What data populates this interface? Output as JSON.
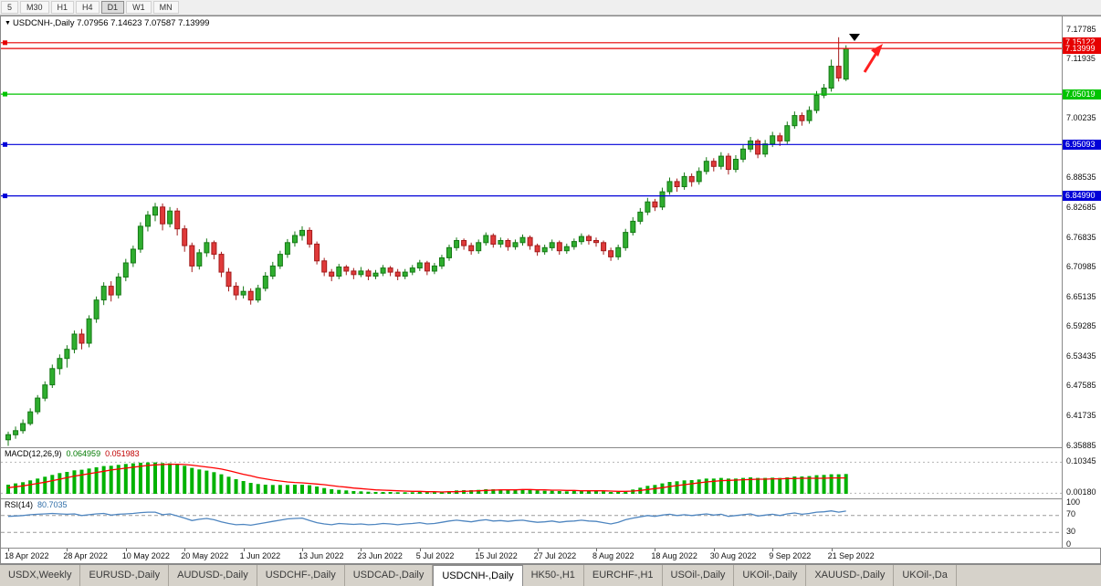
{
  "toolbar": {
    "periods": [
      {
        "label": "5",
        "active": false
      },
      {
        "label": "M30",
        "active": false
      },
      {
        "label": "H1",
        "active": false
      },
      {
        "label": "H4",
        "active": false
      },
      {
        "label": "D1",
        "active": true
      },
      {
        "label": "W1",
        "active": false
      },
      {
        "label": "MN",
        "active": false
      }
    ]
  },
  "chart": {
    "title": {
      "marker": "▼",
      "symbol": "USDCNH-,Daily",
      "open": "7.07956",
      "high": "7.14623",
      "low": "7.07587",
      "close": "7.13999",
      "display": "USDCNH-,Daily  7.07956 7.14623 7.07587 7.13999"
    }
  },
  "chart_data": {
    "type": "candlestick",
    "symbol": "USDCNH",
    "timeframe": "Daily",
    "price_range": {
      "top": 7.17785,
      "bottom": 6.35885
    },
    "price_ticks": [
      "7.17785",
      "7.11935",
      "7.00235",
      "6.88535",
      "6.82685",
      "6.76835",
      "6.70985",
      "6.65135",
      "6.59285",
      "6.53435",
      "6.47585",
      "6.41735",
      "6.35885"
    ],
    "hlines": [
      {
        "price": 7.15122,
        "label": "7.15122",
        "color": "#e60000",
        "marker": true,
        "name": "resistance-line"
      },
      {
        "price": 7.13999,
        "label": "7.13999",
        "color": "#e60000",
        "marker": false,
        "name": "bid-price-line"
      },
      {
        "price": 7.05019,
        "label": "7.05019",
        "color": "#00c400",
        "marker": true,
        "name": "support-line-1"
      },
      {
        "price": 6.95093,
        "label": "6.95093",
        "color": "#0000d8",
        "marker": true,
        "name": "support-line-2"
      },
      {
        "price": 6.8499,
        "label": "6.84990",
        "color": "#0000d8",
        "marker": true,
        "name": "support-line-3"
      }
    ],
    "x_axis": [
      {
        "label": "18 Apr 2022",
        "index": 0
      },
      {
        "label": "28 Apr 2022",
        "index": 8
      },
      {
        "label": "10 May 2022",
        "index": 16
      },
      {
        "label": "20 May 2022",
        "index": 24
      },
      {
        "label": "1 Jun 2022",
        "index": 32
      },
      {
        "label": "13 Jun 2022",
        "index": 40
      },
      {
        "label": "23 Jun 2022",
        "index": 48
      },
      {
        "label": "5 Jul 2022",
        "index": 56
      },
      {
        "label": "15 Jul 2022",
        "index": 64
      },
      {
        "label": "27 Jul 2022",
        "index": 72
      },
      {
        "label": "8 Aug 2022",
        "index": 80
      },
      {
        "label": "18 Aug 2022",
        "index": 88
      },
      {
        "label": "30 Aug 2022",
        "index": 96
      },
      {
        "label": "9 Sep 2022",
        "index": 104
      },
      {
        "label": "21 Sep 2022",
        "index": 112
      }
    ],
    "candles_ohlc": [
      [
        6.37,
        6.386,
        6.358,
        6.38
      ],
      [
        6.38,
        6.396,
        6.372,
        6.388
      ],
      [
        6.388,
        6.41,
        6.382,
        6.402
      ],
      [
        6.402,
        6.432,
        6.398,
        6.425
      ],
      [
        6.425,
        6.458,
        6.42,
        6.452
      ],
      [
        6.452,
        6.485,
        6.446,
        6.478
      ],
      [
        6.478,
        6.518,
        6.472,
        6.51
      ],
      [
        6.51,
        6.538,
        6.498,
        6.53
      ],
      [
        6.53,
        6.556,
        6.512,
        6.548
      ],
      [
        6.548,
        6.585,
        6.54,
        6.578
      ],
      [
        6.578,
        6.588,
        6.548,
        6.56
      ],
      [
        6.56,
        6.615,
        6.552,
        6.608
      ],
      [
        6.608,
        6.652,
        6.6,
        6.645
      ],
      [
        6.645,
        6.68,
        6.635,
        6.672
      ],
      [
        6.672,
        6.682,
        6.642,
        6.655
      ],
      [
        6.655,
        6.698,
        6.648,
        6.69
      ],
      [
        6.69,
        6.726,
        6.682,
        6.718
      ],
      [
        6.718,
        6.752,
        6.71,
        6.745
      ],
      [
        6.745,
        6.798,
        6.738,
        6.79
      ],
      [
        6.79,
        6.82,
        6.78,
        6.812
      ],
      [
        6.812,
        6.836,
        6.8,
        6.828
      ],
      [
        6.828,
        6.835,
        6.782,
        6.795
      ],
      [
        6.795,
        6.828,
        6.788,
        6.82
      ],
      [
        6.82,
        6.826,
        6.772,
        6.785
      ],
      [
        6.785,
        6.792,
        6.74,
        6.752
      ],
      [
        6.752,
        6.758,
        6.7,
        6.712
      ],
      [
        6.712,
        6.745,
        6.705,
        6.738
      ],
      [
        6.738,
        6.766,
        6.73,
        6.758
      ],
      [
        6.758,
        6.762,
        6.725,
        6.735
      ],
      [
        6.735,
        6.74,
        6.69,
        6.7
      ],
      [
        6.7,
        6.708,
        6.662,
        6.672
      ],
      [
        6.672,
        6.68,
        6.645,
        6.655
      ],
      [
        6.655,
        6.672,
        6.648,
        6.662
      ],
      [
        6.662,
        6.668,
        6.636,
        6.645
      ],
      [
        6.645,
        6.675,
        6.64,
        6.668
      ],
      [
        6.668,
        6.7,
        6.662,
        6.692
      ],
      [
        6.692,
        6.72,
        6.686,
        6.712
      ],
      [
        6.712,
        6.742,
        6.706,
        6.735
      ],
      [
        6.735,
        6.765,
        6.728,
        6.758
      ],
      [
        6.758,
        6.78,
        6.75,
        6.772
      ],
      [
        6.772,
        6.79,
        6.762,
        6.782
      ],
      [
        6.782,
        6.788,
        6.748,
        6.755
      ],
      [
        6.755,
        6.76,
        6.715,
        6.722
      ],
      [
        6.722,
        6.728,
        6.692,
        6.7
      ],
      [
        6.7,
        6.706,
        6.682,
        6.692
      ],
      [
        6.692,
        6.716,
        6.686,
        6.71
      ],
      [
        6.71,
        6.714,
        6.694,
        6.702
      ],
      [
        6.702,
        6.708,
        6.686,
        6.695
      ],
      [
        6.695,
        6.71,
        6.69,
        6.702
      ],
      [
        6.702,
        6.706,
        6.684,
        6.692
      ],
      [
        6.692,
        6.704,
        6.686,
        6.698
      ],
      [
        6.698,
        6.714,
        6.692,
        6.708
      ],
      [
        6.708,
        6.712,
        6.692,
        6.7
      ],
      [
        6.7,
        6.706,
        6.684,
        6.692
      ],
      [
        6.692,
        6.706,
        6.686,
        6.7
      ],
      [
        6.7,
        6.714,
        6.694,
        6.708
      ],
      [
        6.708,
        6.724,
        6.702,
        6.718
      ],
      [
        6.718,
        6.722,
        6.694,
        6.702
      ],
      [
        6.702,
        6.718,
        6.696,
        6.712
      ],
      [
        6.712,
        6.734,
        6.706,
        6.728
      ],
      [
        6.728,
        6.754,
        6.722,
        6.748
      ],
      [
        6.748,
        6.768,
        6.742,
        6.762
      ],
      [
        6.762,
        6.766,
        6.744,
        6.752
      ],
      [
        6.752,
        6.758,
        6.734,
        6.742
      ],
      [
        6.742,
        6.764,
        6.736,
        6.758
      ],
      [
        6.758,
        6.778,
        6.752,
        6.772
      ],
      [
        6.772,
        6.776,
        6.748,
        6.755
      ],
      [
        6.755,
        6.768,
        6.748,
        6.762
      ],
      [
        6.762,
        6.766,
        6.742,
        6.75
      ],
      [
        6.75,
        6.764,
        6.744,
        6.758
      ],
      [
        6.758,
        6.774,
        6.752,
        6.768
      ],
      [
        6.768,
        6.772,
        6.744,
        6.752
      ],
      [
        6.752,
        6.756,
        6.732,
        6.74
      ],
      [
        6.74,
        6.754,
        6.734,
        6.748
      ],
      [
        6.748,
        6.764,
        6.742,
        6.758
      ],
      [
        6.758,
        6.762,
        6.734,
        6.742
      ],
      [
        6.742,
        6.756,
        6.736,
        6.75
      ],
      [
        6.75,
        6.766,
        6.744,
        6.76
      ],
      [
        6.76,
        6.776,
        6.754,
        6.77
      ],
      [
        6.77,
        6.774,
        6.754,
        6.762
      ],
      [
        6.762,
        6.768,
        6.75,
        6.758
      ],
      [
        6.758,
        6.762,
        6.734,
        6.742
      ],
      [
        6.742,
        6.748,
        6.722,
        6.73
      ],
      [
        6.73,
        6.754,
        6.724,
        6.748
      ],
      [
        6.748,
        6.785,
        6.742,
        6.778
      ],
      [
        6.778,
        6.808,
        6.772,
        6.8
      ],
      [
        6.8,
        6.826,
        6.794,
        6.818
      ],
      [
        6.818,
        6.846,
        6.812,
        6.838
      ],
      [
        6.838,
        6.844,
        6.82,
        6.828
      ],
      [
        6.828,
        6.866,
        6.822,
        6.858
      ],
      [
        6.858,
        6.886,
        6.852,
        6.878
      ],
      [
        6.878,
        6.884,
        6.858,
        6.868
      ],
      [
        6.868,
        6.896,
        6.862,
        6.888
      ],
      [
        6.888,
        6.894,
        6.868,
        6.878
      ],
      [
        6.878,
        6.906,
        6.872,
        6.898
      ],
      [
        6.898,
        6.926,
        6.892,
        6.918
      ],
      [
        6.918,
        6.924,
        6.898,
        6.908
      ],
      [
        6.908,
        6.936,
        6.902,
        6.928
      ],
      [
        6.928,
        6.934,
        6.892,
        6.902
      ],
      [
        6.902,
        6.93,
        6.896,
        6.922
      ],
      [
        6.922,
        6.95,
        6.916,
        6.942
      ],
      [
        6.942,
        6.966,
        6.936,
        6.958
      ],
      [
        6.958,
        6.962,
        6.924,
        6.932
      ],
      [
        6.932,
        6.96,
        6.926,
        6.952
      ],
      [
        6.952,
        6.976,
        6.946,
        6.968
      ],
      [
        6.968,
        6.974,
        6.948,
        6.958
      ],
      [
        6.958,
        6.996,
        6.952,
        6.988
      ],
      [
        6.988,
        7.016,
        6.982,
        7.008
      ],
      [
        7.008,
        7.014,
        6.988,
        6.998
      ],
      [
        6.998,
        7.026,
        6.992,
        7.018
      ],
      [
        7.018,
        7.056,
        7.012,
        7.048
      ],
      [
        7.048,
        7.07,
        7.042,
        7.062
      ],
      [
        7.062,
        7.118,
        7.055,
        7.105
      ],
      [
        7.105,
        7.162,
        7.075,
        7.082
      ],
      [
        7.07956,
        7.14623,
        7.07587,
        7.13999
      ]
    ],
    "colors": {
      "up": "#2fae2f",
      "up_border": "#157815",
      "down": "#e03a3a",
      "down_border": "#a21b1b",
      "arrow": "#ff1f1f",
      "triangle": "#000000",
      "macd_hist": "#00b200",
      "macd_signal": "#ff0000",
      "rsi_line": "#4f86c0"
    },
    "macd": {
      "label": "MACD(12,26,9)",
      "value_main": "0.064959",
      "value_signal": "0.051983",
      "ticks": [
        "0.10345",
        "0.00180"
      ],
      "histogram": [
        0.03,
        0.034,
        0.038,
        0.044,
        0.05,
        0.056,
        0.062,
        0.068,
        0.072,
        0.077,
        0.079,
        0.083,
        0.087,
        0.091,
        0.092,
        0.095,
        0.098,
        0.1,
        0.102,
        0.103,
        0.103,
        0.101,
        0.1,
        0.097,
        0.092,
        0.085,
        0.08,
        0.076,
        0.071,
        0.064,
        0.056,
        0.048,
        0.042,
        0.036,
        0.032,
        0.03,
        0.029,
        0.029,
        0.029,
        0.03,
        0.03,
        0.028,
        0.024,
        0.019,
        0.015,
        0.013,
        0.011,
        0.009,
        0.008,
        0.007,
        0.006,
        0.006,
        0.006,
        0.005,
        0.005,
        0.005,
        0.006,
        0.005,
        0.005,
        0.006,
        0.008,
        0.011,
        0.012,
        0.012,
        0.013,
        0.015,
        0.015,
        0.015,
        0.014,
        0.014,
        0.014,
        0.013,
        0.011,
        0.01,
        0.01,
        0.009,
        0.008,
        0.009,
        0.01,
        0.01,
        0.01,
        0.008,
        0.006,
        0.006,
        0.009,
        0.014,
        0.02,
        0.026,
        0.029,
        0.034,
        0.039,
        0.041,
        0.044,
        0.045,
        0.047,
        0.05,
        0.05,
        0.052,
        0.05,
        0.05,
        0.052,
        0.054,
        0.052,
        0.052,
        0.053,
        0.052,
        0.054,
        0.057,
        0.057,
        0.058,
        0.061,
        0.062,
        0.064,
        0.064,
        0.065
      ],
      "signal": [
        0.02,
        0.023,
        0.026,
        0.03,
        0.034,
        0.038,
        0.043,
        0.048,
        0.053,
        0.058,
        0.062,
        0.066,
        0.07,
        0.074,
        0.078,
        0.081,
        0.084,
        0.087,
        0.09,
        0.093,
        0.095,
        0.096,
        0.097,
        0.097,
        0.096,
        0.094,
        0.091,
        0.088,
        0.085,
        0.081,
        0.076,
        0.07,
        0.064,
        0.059,
        0.053,
        0.049,
        0.045,
        0.042,
        0.039,
        0.037,
        0.036,
        0.034,
        0.032,
        0.03,
        0.027,
        0.024,
        0.022,
        0.019,
        0.017,
        0.015,
        0.013,
        0.012,
        0.011,
        0.01,
        0.009,
        0.008,
        0.008,
        0.007,
        0.007,
        0.006,
        0.007,
        0.007,
        0.008,
        0.009,
        0.01,
        0.011,
        0.012,
        0.013,
        0.013,
        0.013,
        0.014,
        0.014,
        0.013,
        0.013,
        0.012,
        0.012,
        0.011,
        0.011,
        0.01,
        0.01,
        0.01,
        0.01,
        0.009,
        0.008,
        0.008,
        0.009,
        0.011,
        0.014,
        0.017,
        0.02,
        0.024,
        0.027,
        0.03,
        0.033,
        0.036,
        0.039,
        0.041,
        0.043,
        0.044,
        0.045,
        0.046,
        0.047,
        0.048,
        0.048,
        0.049,
        0.049,
        0.05,
        0.05,
        0.051,
        0.051,
        0.051,
        0.051,
        0.052,
        0.052,
        0.052
      ]
    },
    "rsi": {
      "label": "RSI(14)",
      "value": "80.7035",
      "ticks": [
        "100",
        "70",
        "30",
        "0"
      ],
      "levels": [
        70,
        30
      ],
      "values": [
        68,
        69,
        70,
        72,
        73,
        74,
        75,
        74,
        73,
        74,
        70,
        72,
        74,
        75,
        71,
        73,
        74,
        75,
        77,
        78,
        78,
        72,
        74,
        69,
        64,
        58,
        61,
        63,
        60,
        55,
        51,
        48,
        49,
        47,
        50,
        53,
        56,
        59,
        62,
        63,
        64,
        58,
        53,
        50,
        48,
        51,
        50,
        49,
        50,
        48,
        49,
        51,
        50,
        48,
        50,
        51,
        53,
        50,
        51,
        54,
        57,
        59,
        57,
        55,
        58,
        60,
        57,
        58,
        56,
        58,
        59,
        56,
        54,
        55,
        57,
        54,
        56,
        57,
        59,
        57,
        56,
        53,
        50,
        54,
        60,
        64,
        67,
        70,
        68,
        71,
        73,
        70,
        72,
        70,
        72,
        74,
        71,
        73,
        68,
        70,
        72,
        74,
        69,
        71,
        73,
        70,
        74,
        76,
        73,
        75,
        78,
        79,
        81,
        78,
        80.7
      ]
    }
  },
  "tabs": {
    "items": [
      {
        "label": "USDX,Weekly",
        "active": false
      },
      {
        "label": "EURUSD-,Daily",
        "active": false
      },
      {
        "label": "AUDUSD-,Daily",
        "active": false
      },
      {
        "label": "USDCHF-,Daily",
        "active": false
      },
      {
        "label": "USDCAD-,Daily",
        "active": false
      },
      {
        "label": "USDCNH-,Daily",
        "active": true
      },
      {
        "label": "HK50-,H1",
        "active": false
      },
      {
        "label": "EURCHF-,H1",
        "active": false
      },
      {
        "label": "USOil-,Daily",
        "active": false
      },
      {
        "label": "UKOil-,Daily",
        "active": false
      },
      {
        "label": "XAUUSD-,Daily",
        "active": false
      },
      {
        "label": "UKOil-,Da",
        "active": false
      }
    ]
  }
}
